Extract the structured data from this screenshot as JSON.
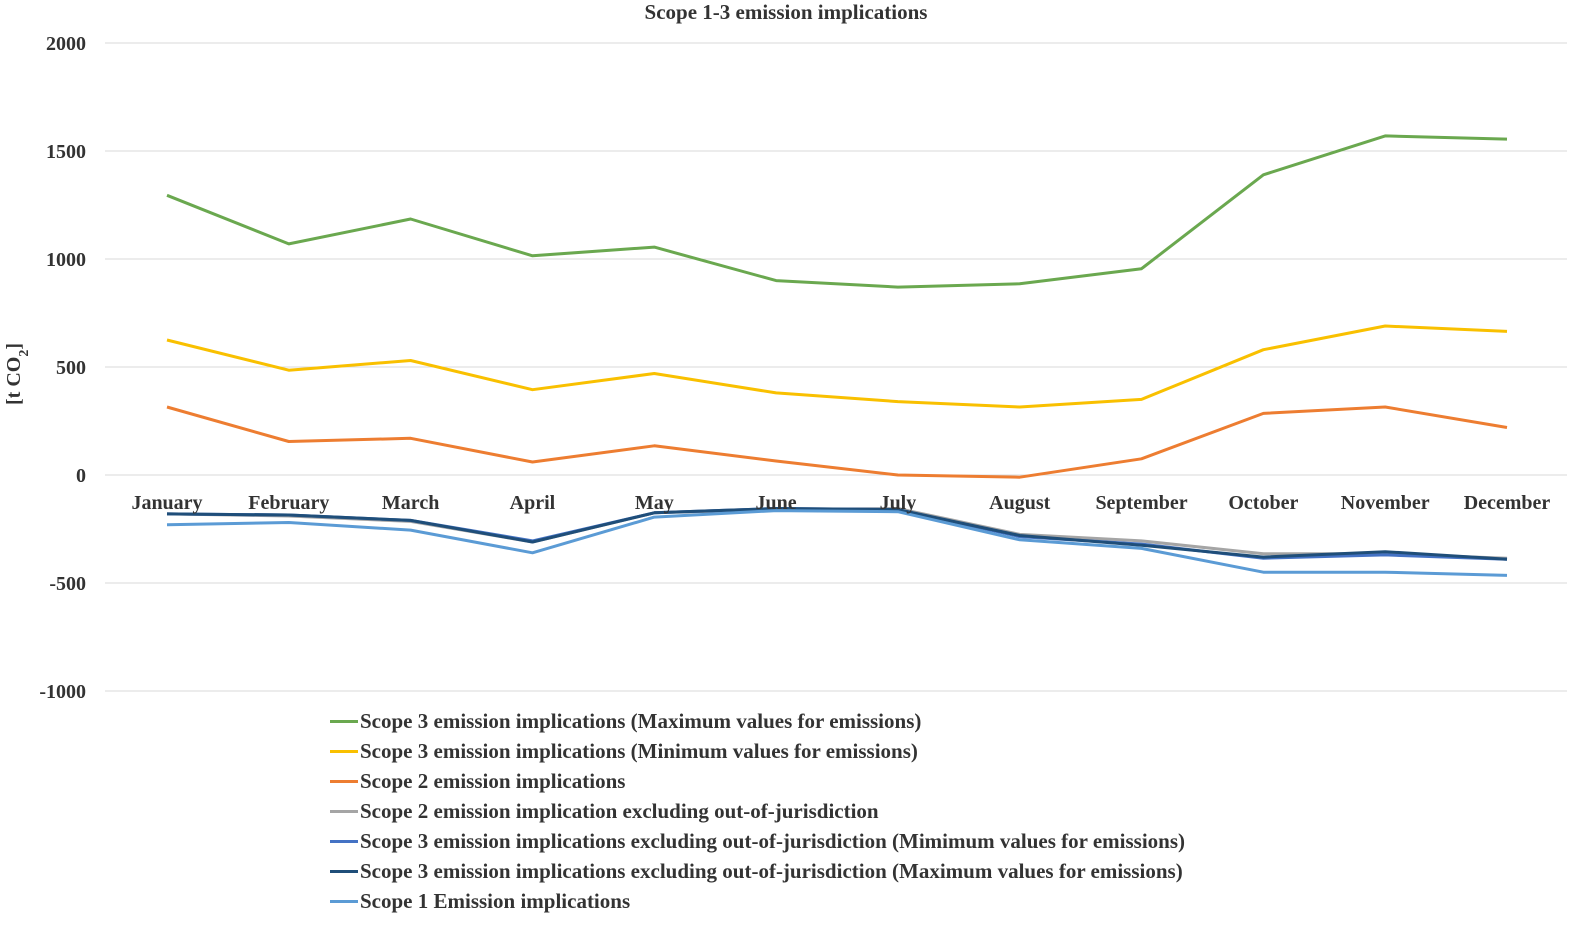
{
  "chart_data": {
    "type": "line",
    "title": "Scope 1-3 emission implications",
    "ylabel": "[t CO",
    "ylabel_subscript": "2",
    "ylabel_suffix": "]",
    "ylim": [
      -1000,
      2000
    ],
    "yticks": [
      2000,
      1500,
      1000,
      500,
      0,
      -500,
      -1000
    ],
    "grid": true,
    "legend_position": "bottom",
    "categories": [
      "January",
      "February",
      "March",
      "April",
      "May",
      "June",
      "July",
      "August",
      "September",
      "October",
      "November",
      "December"
    ],
    "series": [
      {
        "name": "Scope 3 emission implications (Maximum values for emissions)",
        "color": "#6aa84f",
        "values": [
          1295,
          1070,
          1185,
          1015,
          1055,
          900,
          870,
          885,
          955,
          1390,
          1570,
          1555
        ]
      },
      {
        "name": "Scope 3 emission implications (Minimum values for emissions)",
        "color": "#f9c000",
        "values": [
          625,
          485,
          530,
          395,
          470,
          380,
          340,
          315,
          350,
          580,
          690,
          665
        ]
      },
      {
        "name": "Scope 2 emission implications",
        "color": "#ed7d31",
        "values": [
          315,
          155,
          170,
          60,
          135,
          65,
          0,
          -10,
          75,
          285,
          315,
          220
        ]
      },
      {
        "name": "Scope 2 emission implication excluding out-of-jurisdiction",
        "color": "#a5a5a5",
        "values": [
          -180,
          -190,
          -215,
          -310,
          -175,
          -160,
          -155,
          -275,
          -305,
          -365,
          -365,
          -385
        ]
      },
      {
        "name": "Scope 3 emission implications excluding out-of-jurisdiction (Mimimum values for emissions)",
        "color": "#4472c4",
        "values": [
          -180,
          -185,
          -210,
          -305,
          -175,
          -155,
          -160,
          -285,
          -320,
          -385,
          -370,
          -390
        ]
      },
      {
        "name": "Scope 3 emission implications excluding out-of-jurisdiction (Maximum values for emissions)",
        "color": "#1f4e79",
        "values": [
          -180,
          -185,
          -210,
          -310,
          -175,
          -155,
          -160,
          -280,
          -325,
          -380,
          -355,
          -390
        ]
      },
      {
        "name": "Scope 1 Emission implications",
        "color": "#5b9bd5",
        "values": [
          -230,
          -220,
          -255,
          -360,
          -195,
          -165,
          -170,
          -300,
          -340,
          -450,
          -450,
          -465
        ]
      }
    ]
  }
}
